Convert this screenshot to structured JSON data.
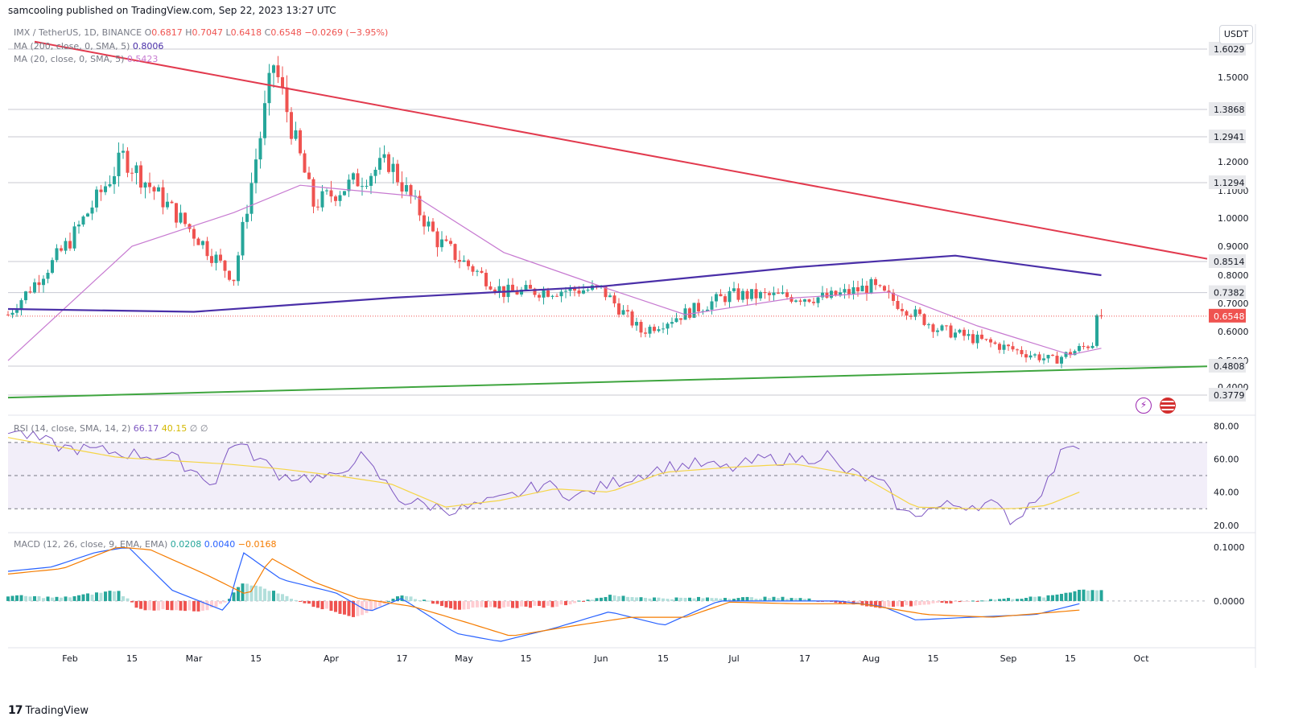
{
  "header": {
    "published": "samcooling published on TradingView.com, Sep 22, 2023 13:27 UTC"
  },
  "currency_button": "USDT",
  "legend": {
    "symbol": "IMX / TetherUS, 1D, BINANCE",
    "o_label": "O",
    "o": "0.6817",
    "h_label": "H",
    "h": "0.7047",
    "l_label": "L",
    "l": "0.6418",
    "c_label": "C",
    "c": "0.6548",
    "change": "−0.0269 (−3.95%)",
    "ma200_label": "MA (200, close, 0, SMA, 5)",
    "ma200": "0.8006",
    "ma20_label": "MA (20, close, 0, SMA, 5)",
    "ma20": "0.5423",
    "rsi_label": "RSI (14, close, SMA, 14, 2)",
    "rsi": "66.17",
    "rsi_ma": "40.15",
    "rsi_extra1": "∅",
    "rsi_extra2": "∅",
    "macd_label": "MACD (12, 26, close, 9, EMA, EMA)",
    "macd_hist": "0.0208",
    "macd": "0.0040",
    "macd_signal": "−0.0168"
  },
  "footer": {
    "brand": "TradingView",
    "logo": "17"
  },
  "colors": {
    "up": "#26a69a",
    "down": "#ef5350",
    "ma200": "#4a2fa8",
    "ma20": "#c77ad1",
    "resistance": "#e23a4e",
    "support": "#3fa53f",
    "rsi": "#7e57c2",
    "rsi_ma": "#f5d547",
    "macd": "#2962ff",
    "signal": "#f57c00"
  },
  "chart_data": [
    {
      "type": "candlestick",
      "title": "IMX / TetherUS, 1D, BINANCE",
      "x_ticks": [
        "Feb",
        "15",
        "Mar",
        "15",
        "Apr",
        "17",
        "May",
        "15",
        "Jun",
        "15",
        "Jul",
        "17",
        "Aug",
        "15",
        "Sep",
        "15",
        "Oct"
      ],
      "y_ticks": [
        "1.5000",
        "1.2000",
        "1.1000",
        "1.0000",
        "0.9000",
        "0.8000",
        "0.7000",
        "0.6000",
        "0.5000",
        "0.4000"
      ],
      "ylim": [
        0.35,
        1.65
      ],
      "price_labels": [
        {
          "value": 1.6029,
          "text": "1.6029"
        },
        {
          "value": 1.3868,
          "text": "1.3868"
        },
        {
          "value": 1.2941,
          "text": "1.2941"
        },
        {
          "value": 1.1294,
          "text": "1.1294"
        },
        {
          "value": 0.8514,
          "text": "0.8514"
        },
        {
          "value": 0.7382,
          "text": "0.7382"
        },
        {
          "value": 0.4808,
          "text": "0.4808"
        },
        {
          "value": 0.3779,
          "text": "0.3779"
        }
      ],
      "last_price": {
        "value": 0.6548,
        "text": "0.6548"
      },
      "resistance_line": {
        "from": [
          "Jan 24",
          1.63
        ],
        "to": [
          "Sep 30",
          0.86
        ]
      },
      "support_line": {
        "from": [
          "Jan 18",
          0.37
        ],
        "to": [
          "Sep 30",
          0.48
        ]
      },
      "key_closes": [
        {
          "date": "Jan 18",
          "close": 0.66
        },
        {
          "date": "Feb 01",
          "close": 0.92
        },
        {
          "date": "Feb 13",
          "close": 1.22
        },
        {
          "date": "Mar 10",
          "close": 0.79
        },
        {
          "date": "Mar 19",
          "close": 1.55
        },
        {
          "date": "Mar 28",
          "close": 1.05
        },
        {
          "date": "Apr 14",
          "close": 1.2
        },
        {
          "date": "Apr 25",
          "close": 0.92
        },
        {
          "date": "May 10",
          "close": 0.74
        },
        {
          "date": "Jun 01",
          "close": 0.75
        },
        {
          "date": "Jun 10",
          "close": 0.6
        },
        {
          "date": "Jun 30",
          "close": 0.73
        },
        {
          "date": "Jul 22",
          "close": 0.72
        },
        {
          "date": "Aug 01",
          "close": 0.76
        },
        {
          "date": "Aug 16",
          "close": 0.61
        },
        {
          "date": "Sep 11",
          "close": 0.5
        },
        {
          "date": "Sep 20",
          "close": 0.56
        },
        {
          "date": "Sep 21",
          "close": 0.68
        },
        {
          "date": "Sep 22",
          "close": 0.6548
        }
      ],
      "ma200_path": [
        [
          "Jan 18",
          0.68
        ],
        [
          "Mar 01",
          0.67
        ],
        [
          "Apr 15",
          0.72
        ],
        [
          "Jun 01",
          0.76
        ],
        [
          "Jul 15",
          0.83
        ],
        [
          "Aug 20",
          0.87
        ],
        [
          "Sep 22",
          0.8
        ]
      ],
      "ma20_path": [
        [
          "Jan 18",
          0.5
        ],
        [
          "Feb 15",
          0.9
        ],
        [
          "Mar 10",
          1.02
        ],
        [
          "Mar 25",
          1.12
        ],
        [
          "Apr 20",
          1.08
        ],
        [
          "May 10",
          0.88
        ],
        [
          "Jun 01",
          0.76
        ],
        [
          "Jun 20",
          0.66
        ],
        [
          "Jul 15",
          0.72
        ],
        [
          "Aug 05",
          0.74
        ],
        [
          "Aug 25",
          0.62
        ],
        [
          "Sep 15",
          0.52
        ],
        [
          "Sep 22",
          0.5423
        ]
      ]
    },
    {
      "type": "line",
      "title": "RSI (14, close, SMA, 14, 2)",
      "y_ticks": [
        "80.00",
        "60.00",
        "40.00",
        "20.00"
      ],
      "ylim": [
        16,
        86
      ],
      "bands": [
        70,
        50,
        30
      ],
      "series": [
        {
          "name": "RSI",
          "values": [
            [
              0,
              78
            ],
            [
              0.05,
              67
            ],
            [
              0.1,
              64
            ],
            [
              0.15,
              61
            ],
            [
              0.19,
              45
            ],
            [
              0.205,
              72
            ],
            [
              0.25,
              50
            ],
            [
              0.3,
              48
            ],
            [
              0.32,
              63
            ],
            [
              0.36,
              35
            ],
            [
              0.41,
              29
            ],
            [
              0.45,
              35
            ],
            [
              0.49,
              45
            ],
            [
              0.52,
              37
            ],
            [
              0.55,
              45
            ],
            [
              0.6,
              55
            ],
            [
              0.63,
              57
            ],
            [
              0.66,
              54
            ],
            [
              0.69,
              60
            ],
            [
              0.73,
              60
            ],
            [
              0.75,
              63
            ],
            [
              0.76,
              54
            ],
            [
              0.8,
              45
            ],
            [
              0.82,
              26
            ],
            [
              0.86,
              32
            ],
            [
              0.9,
              33
            ],
            [
              0.92,
              22
            ],
            [
              0.95,
              45
            ],
            [
              0.97,
              72
            ],
            [
              0.98,
              66
            ]
          ]
        },
        {
          "name": "MA",
          "values": [
            [
              0,
              73
            ],
            [
              0.1,
              61
            ],
            [
              0.2,
              57
            ],
            [
              0.25,
              54
            ],
            [
              0.3,
              50
            ],
            [
              0.35,
              45
            ],
            [
              0.4,
              31
            ],
            [
              0.45,
              35
            ],
            [
              0.5,
              42
            ],
            [
              0.55,
              40
            ],
            [
              0.6,
              52
            ],
            [
              0.66,
              55
            ],
            [
              0.72,
              57
            ],
            [
              0.78,
              50
            ],
            [
              0.83,
              31
            ],
            [
              0.88,
              30
            ],
            [
              0.92,
              30
            ],
            [
              0.95,
              32
            ],
            [
              0.98,
              40
            ]
          ]
        }
      ]
    },
    {
      "type": "bar+line",
      "title": "MACD (12, 26, close, 9, EMA, EMA)",
      "y_ticks": [
        "0.1000",
        "0.0000"
      ],
      "ylim": [
        -0.085,
        0.125
      ],
      "series": [
        {
          "name": "MACD",
          "values": [
            [
              0,
              0.055
            ],
            [
              0.04,
              0.063
            ],
            [
              0.08,
              0.09
            ],
            [
              0.11,
              0.1
            ],
            [
              0.15,
              0.02
            ],
            [
              0.2,
              -0.02
            ],
            [
              0.215,
              0.09
            ],
            [
              0.25,
              0.04
            ],
            [
              0.3,
              0.015
            ],
            [
              0.33,
              -0.02
            ],
            [
              0.36,
              0.005
            ],
            [
              0.41,
              -0.06
            ],
            [
              0.45,
              -0.075
            ],
            [
              0.5,
              -0.05
            ],
            [
              0.55,
              -0.02
            ],
            [
              0.6,
              -0.045
            ],
            [
              0.65,
              0.0
            ],
            [
              0.7,
              0.0
            ],
            [
              0.76,
              0.0
            ],
            [
              0.8,
              -0.01
            ],
            [
              0.83,
              -0.035
            ],
            [
              0.88,
              -0.03
            ],
            [
              0.94,
              -0.025
            ],
            [
              0.98,
              -0.005
            ]
          ]
        },
        {
          "name": "Signal",
          "values": [
            [
              0,
              0.05
            ],
            [
              0.05,
              0.06
            ],
            [
              0.1,
              0.1
            ],
            [
              0.13,
              0.095
            ],
            [
              0.18,
              0.05
            ],
            [
              0.22,
              0.01
            ],
            [
              0.24,
              0.08
            ],
            [
              0.28,
              0.035
            ],
            [
              0.32,
              0.005
            ],
            [
              0.37,
              -0.01
            ],
            [
              0.42,
              -0.04
            ],
            [
              0.46,
              -0.065
            ],
            [
              0.52,
              -0.045
            ],
            [
              0.57,
              -0.03
            ],
            [
              0.62,
              -0.03
            ],
            [
              0.66,
              -0.002
            ],
            [
              0.72,
              -0.005
            ],
            [
              0.78,
              -0.005
            ],
            [
              0.84,
              -0.025
            ],
            [
              0.9,
              -0.03
            ],
            [
              0.98,
              -0.0168
            ]
          ]
        },
        {
          "name": "Histogram",
          "values": [
            [
              0,
              0.01
            ],
            [
              0.05,
              0.006
            ],
            [
              0.1,
              0.02
            ],
            [
              0.12,
              -0.015
            ],
            [
              0.18,
              -0.02
            ],
            [
              0.2,
              0.0
            ],
            [
              0.215,
              0.035
            ],
            [
              0.24,
              0.02
            ],
            [
              0.28,
              -0.01
            ],
            [
              0.32,
              -0.03
            ],
            [
              0.36,
              0.012
            ],
            [
              0.41,
              -0.015
            ],
            [
              0.45,
              -0.012
            ],
            [
              0.5,
              -0.01
            ],
            [
              0.55,
              0.01
            ],
            [
              0.6,
              0.005
            ],
            [
              0.65,
              0.006
            ],
            [
              0.72,
              0.006
            ],
            [
              0.8,
              -0.012
            ],
            [
              0.85,
              -0.005
            ],
            [
              0.9,
              0.003
            ],
            [
              0.95,
              0.008
            ],
            [
              0.98,
              0.0208
            ]
          ]
        }
      ]
    }
  ]
}
